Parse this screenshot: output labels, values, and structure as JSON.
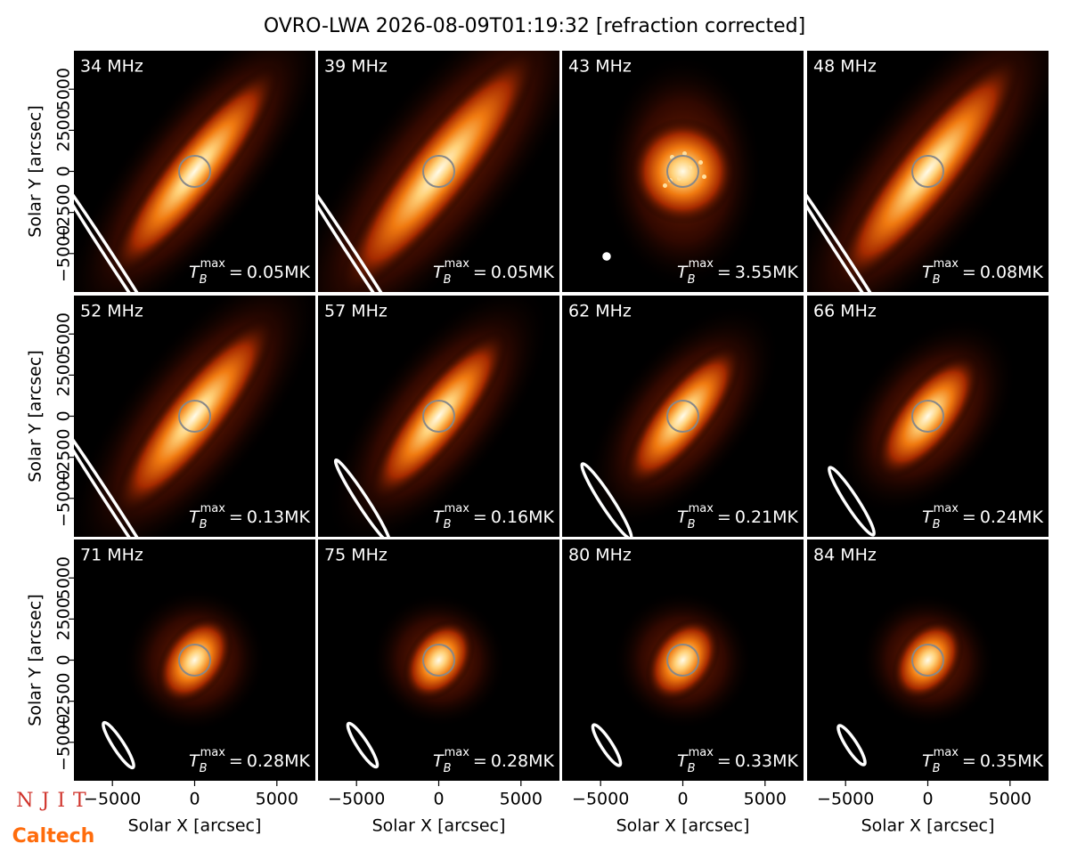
{
  "title": "OVRO-LWA 2026-08-09T01:19:32 [refraction corrected]",
  "axes": {
    "xlabel": "Solar X [arcsec]",
    "ylabel": "Solar Y [arcsec]",
    "xlim": [
      -7340,
      7340
    ],
    "ylim": [
      -7340,
      7340
    ],
    "xticks": [
      {
        "value": -5000,
        "label": "−5000"
      },
      0,
      5000
    ],
    "yticks": [
      {
        "value": -5000,
        "label": "−5000"
      },
      {
        "value": -2500,
        "label": "−2500"
      },
      0,
      2500,
      5000
    ]
  },
  "tb_label": {
    "symbol": "T",
    "sub": "B",
    "sup": "max",
    "eq": "="
  },
  "panels": [
    {
      "freq": "34 MHz",
      "tb": "0.05MK"
    },
    {
      "freq": "39 MHz",
      "tb": "0.05MK"
    },
    {
      "freq": "43 MHz",
      "tb": "3.55MK"
    },
    {
      "freq": "48 MHz",
      "tb": "0.08MK"
    },
    {
      "freq": "52 MHz",
      "tb": "0.13MK"
    },
    {
      "freq": "57 MHz",
      "tb": "0.16MK"
    },
    {
      "freq": "62 MHz",
      "tb": "0.21MK"
    },
    {
      "freq": "66 MHz",
      "tb": "0.24MK"
    },
    {
      "freq": "71 MHz",
      "tb": "0.28MK"
    },
    {
      "freq": "75 MHz",
      "tb": "0.28MK"
    },
    {
      "freq": "80 MHz",
      "tb": "0.33MK"
    },
    {
      "freq": "84 MHz",
      "tb": "0.35MK"
    }
  ],
  "logos": [
    "NJIT",
    "Caltech"
  ]
}
